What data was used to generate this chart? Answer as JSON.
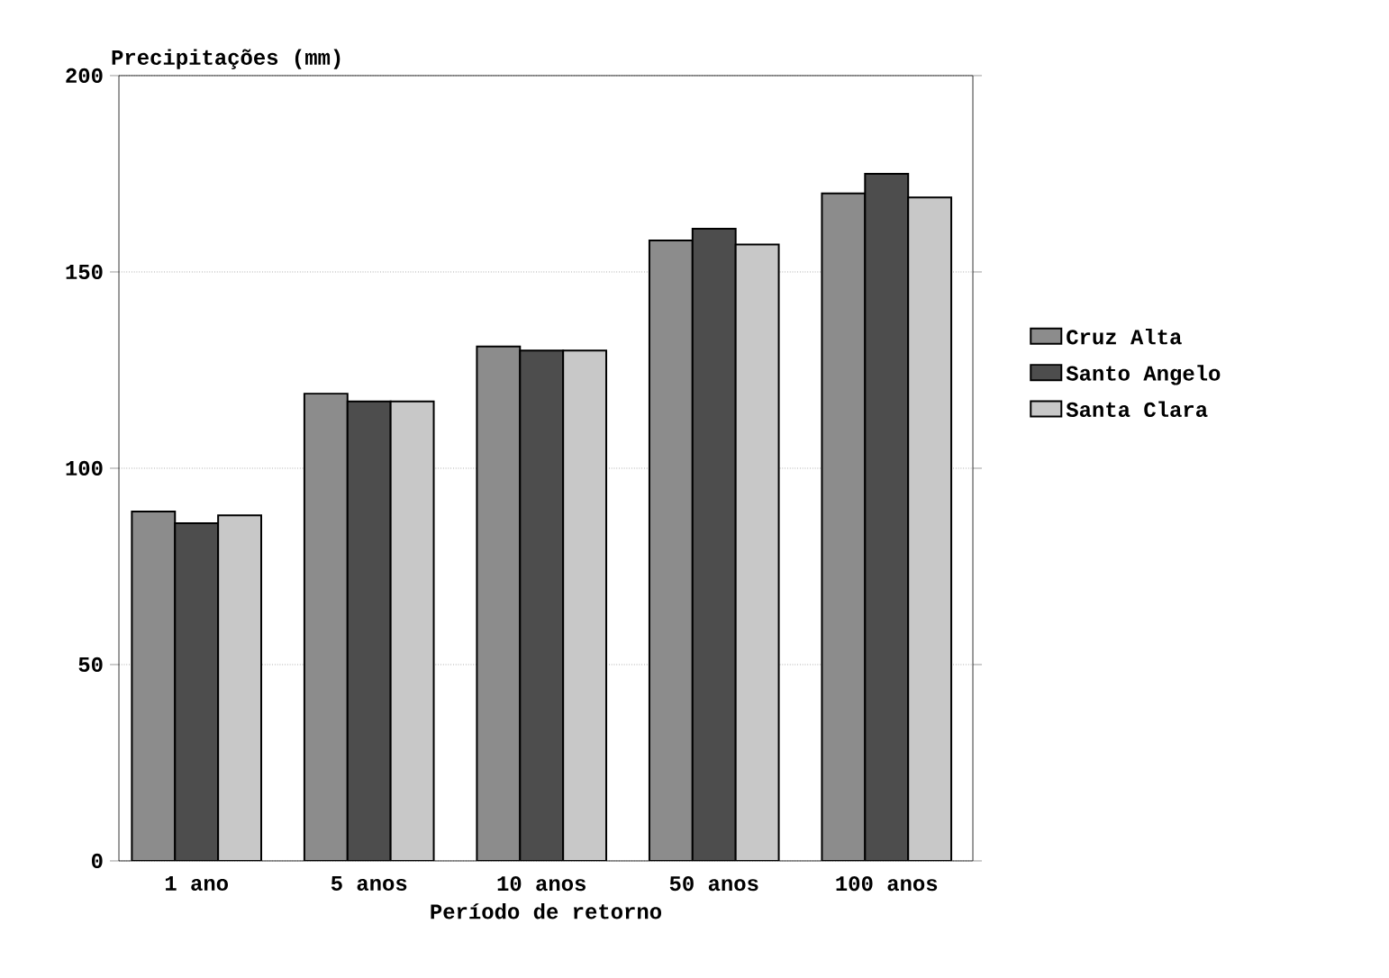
{
  "chart_data": {
    "type": "bar",
    "ylabel": "Precipitações (mm)",
    "xlabel": "Período de retorno",
    "categories": [
      "1 ano",
      "5 anos",
      "10 anos",
      "50 anos",
      "100 anos"
    ],
    "series": [
      {
        "name": "Cruz Alta",
        "color": "#8c8c8c",
        "values": [
          89,
          119,
          131,
          158,
          170
        ]
      },
      {
        "name": "Santo Angelo",
        "color": "#4d4d4d",
        "values": [
          86,
          117,
          130,
          161,
          175
        ]
      },
      {
        "name": "Santa Clara",
        "color": "#c8c8c8",
        "values": [
          88,
          117,
          130,
          157,
          169
        ]
      }
    ],
    "ylim": [
      0,
      200
    ],
    "yticks": [
      0,
      50,
      100,
      150,
      200
    ],
    "grid": "y",
    "legend": "right"
  }
}
